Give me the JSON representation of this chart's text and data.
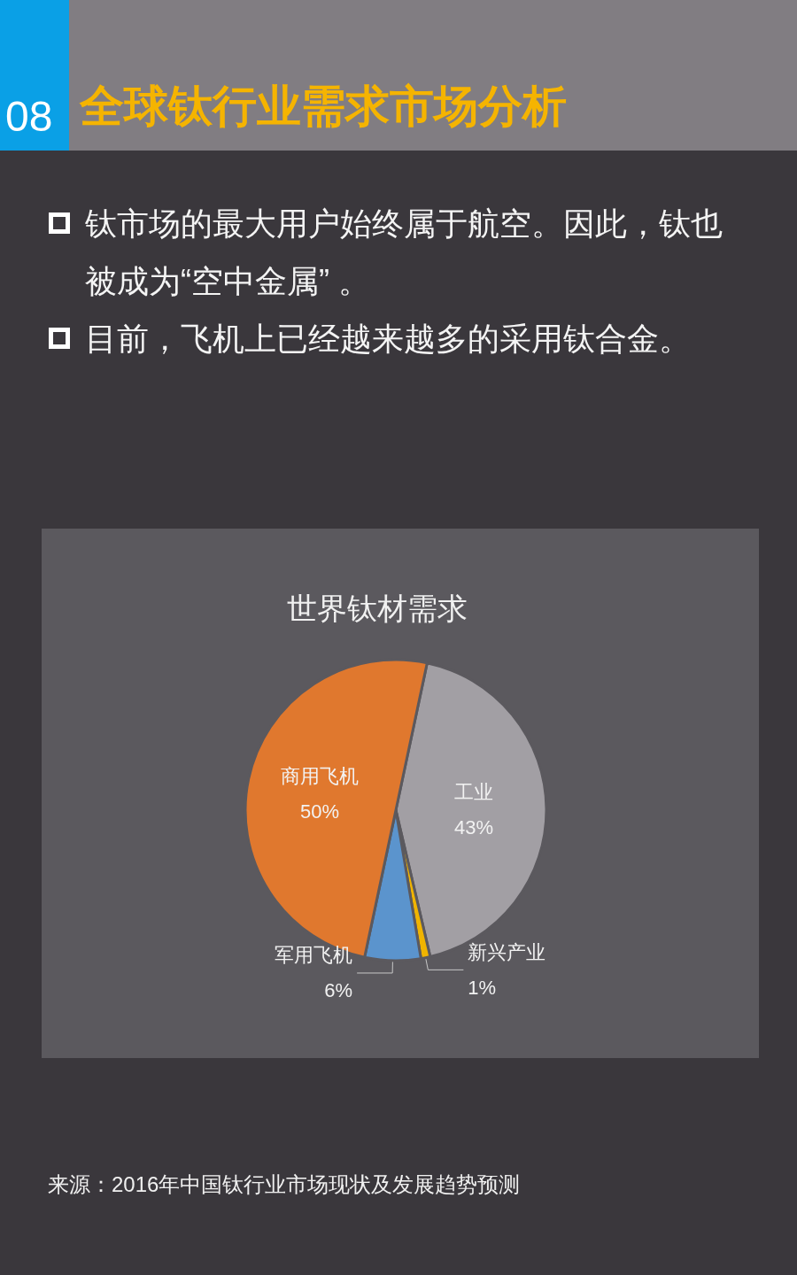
{
  "chart_data": {
    "type": "pie",
    "title": "世界钛材需求",
    "categories": [
      "工业",
      "新兴产业",
      "军用飞机",
      "商用飞机"
    ],
    "values": [
      43,
      1,
      6,
      50
    ],
    "colors": [
      "#a29fa4",
      "#f0b400",
      "#5b94cd",
      "#e0782e"
    ],
    "value_labels": [
      "43%",
      "1%",
      "6%",
      "50%"
    ],
    "annotations": [
      "08",
      "全球钛行业需求市场分析",
      "钛市场的最大用户始终属于航空。因此，钛也被成为“空中金属” 。",
      "目前，飞机上已经越来越多的采用钛合金。",
      "来源：2016年中国钛行业市场现状及发展趋势预测"
    ]
  }
}
